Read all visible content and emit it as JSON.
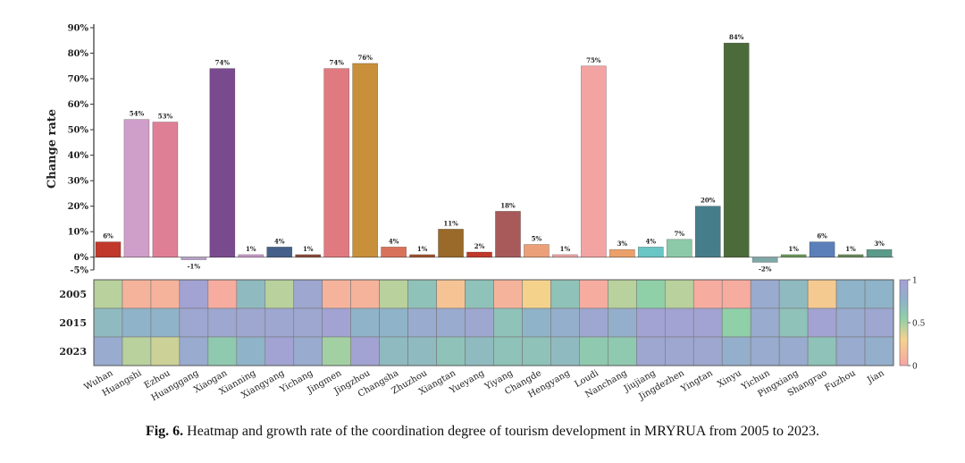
{
  "caption": {
    "label": "Fig. 6.",
    "text": "Heatmap and growth rate of the coordination degree of tourism development in MRYRUA from 2005 to 2023."
  },
  "chart_data": [
    {
      "type": "bar",
      "ylabel": "Change rate",
      "ylim": [
        -5,
        90
      ],
      "yticks": [
        -5,
        0,
        10,
        20,
        30,
        40,
        50,
        60,
        70,
        80,
        90
      ],
      "ytick_labels": [
        "-5%",
        "0%",
        "10%",
        "20%",
        "30%",
        "40%",
        "50%",
        "60%",
        "70%",
        "80%",
        "90%"
      ],
      "categories": [
        "Wuhan",
        "Huangshi",
        "Ezhou",
        "Huanggang",
        "Xiaogan",
        "Xianning",
        "Xiangyang",
        "Yichang",
        "Jingmen",
        "Jingzhou",
        "Changsha",
        "Zhuzhou",
        "Xiangtan",
        "Yueyang",
        "Yiyang",
        "Changde",
        "Hengyang",
        "Loudi",
        "Nanchang",
        "Jiujiang",
        "Jingdezhen",
        "Yingtan",
        "Xinyu",
        "Yichun",
        "Pingxiang",
        "Shangrao",
        "Fuzhou",
        "Jian"
      ],
      "values": [
        6,
        54,
        53,
        -1,
        74,
        1,
        4,
        1,
        74,
        76,
        4,
        1,
        11,
        2,
        18,
        5,
        1,
        75,
        3,
        4,
        7,
        20,
        84,
        -2,
        1,
        6,
        1,
        3
      ],
      "value_labels": [
        "6%",
        "54%",
        "53%",
        "-1%",
        "74%",
        "1%",
        "4%",
        "1%",
        "74%",
        "76%",
        "4%",
        "1%",
        "11%",
        "2%",
        "18%",
        "5%",
        "1%",
        "75%",
        "3%",
        "4%",
        "7%",
        "20%",
        "84%",
        "-2%",
        "1%",
        "6%",
        "1%",
        "3%"
      ],
      "colors": [
        "#c0392b",
        "#cf9ec9",
        "#df7f96",
        "#b9a0c8",
        "#7a4a8e",
        "#c79bc9",
        "#45618a",
        "#8a4a3a",
        "#e07a80",
        "#c8903a",
        "#d9725a",
        "#a0522d",
        "#9a6a2a",
        "#c0392b",
        "#a85a5a",
        "#eba07a",
        "#eea6a6",
        "#f4a3a3",
        "#eba06a",
        "#6ac5c5",
        "#8bc9a8",
        "#467d8a",
        "#4c6b3a",
        "#7fa8a8",
        "#6a9a5a",
        "#5b7fb8",
        "#6a8a5a",
        "#5a9a8a"
      ]
    },
    {
      "type": "heatmap",
      "rows": [
        "2005",
        "2015",
        "2023"
      ],
      "columns": [
        "Wuhan",
        "Huangshi",
        "Ezhou",
        "Huanggang",
        "Xiaogan",
        "Xianning",
        "Xiangyang",
        "Yichang",
        "Jingmen",
        "Jingzhou",
        "Changsha",
        "Zhuzhou",
        "Xiangtan",
        "Yueyang",
        "Yiyang",
        "Changde",
        "Hengyang",
        "Loudi",
        "Nanchang",
        "Jiujiang",
        "Jingdezhen",
        "Yingtan",
        "Xinyu",
        "Yichun",
        "Pingxiang",
        "Shangrao",
        "Fuzhou",
        "Jian"
      ],
      "values": [
        [
          0.45,
          0.1,
          0.1,
          0.95,
          0.05,
          0.7,
          0.45,
          0.9,
          0.1,
          0.1,
          0.45,
          0.65,
          0.2,
          0.65,
          0.1,
          0.3,
          0.65,
          0.05,
          0.45,
          0.55,
          0.45,
          0.05,
          0.05,
          0.85,
          0.7,
          0.25,
          0.75,
          0.75
        ],
        [
          0.7,
          0.75,
          0.75,
          0.9,
          0.9,
          0.9,
          0.9,
          0.9,
          0.95,
          0.75,
          0.75,
          0.85,
          0.85,
          0.9,
          0.65,
          0.75,
          0.8,
          0.9,
          0.8,
          0.95,
          0.95,
          0.95,
          0.55,
          0.85,
          0.65,
          0.95,
          0.85,
          0.9
        ],
        [
          0.85,
          0.45,
          0.4,
          0.85,
          0.6,
          0.75,
          0.95,
          0.85,
          0.5,
          0.95,
          0.7,
          0.7,
          0.65,
          0.7,
          0.65,
          0.65,
          0.7,
          0.6,
          0.6,
          0.9,
          0.9,
          0.9,
          0.8,
          0.85,
          0.85,
          0.65,
          0.85,
          0.8
        ]
      ],
      "colorbar_ticks": [
        0,
        0.5,
        1
      ],
      "colorbar_tick_labels": [
        "0",
        "0.5",
        "1"
      ]
    }
  ]
}
